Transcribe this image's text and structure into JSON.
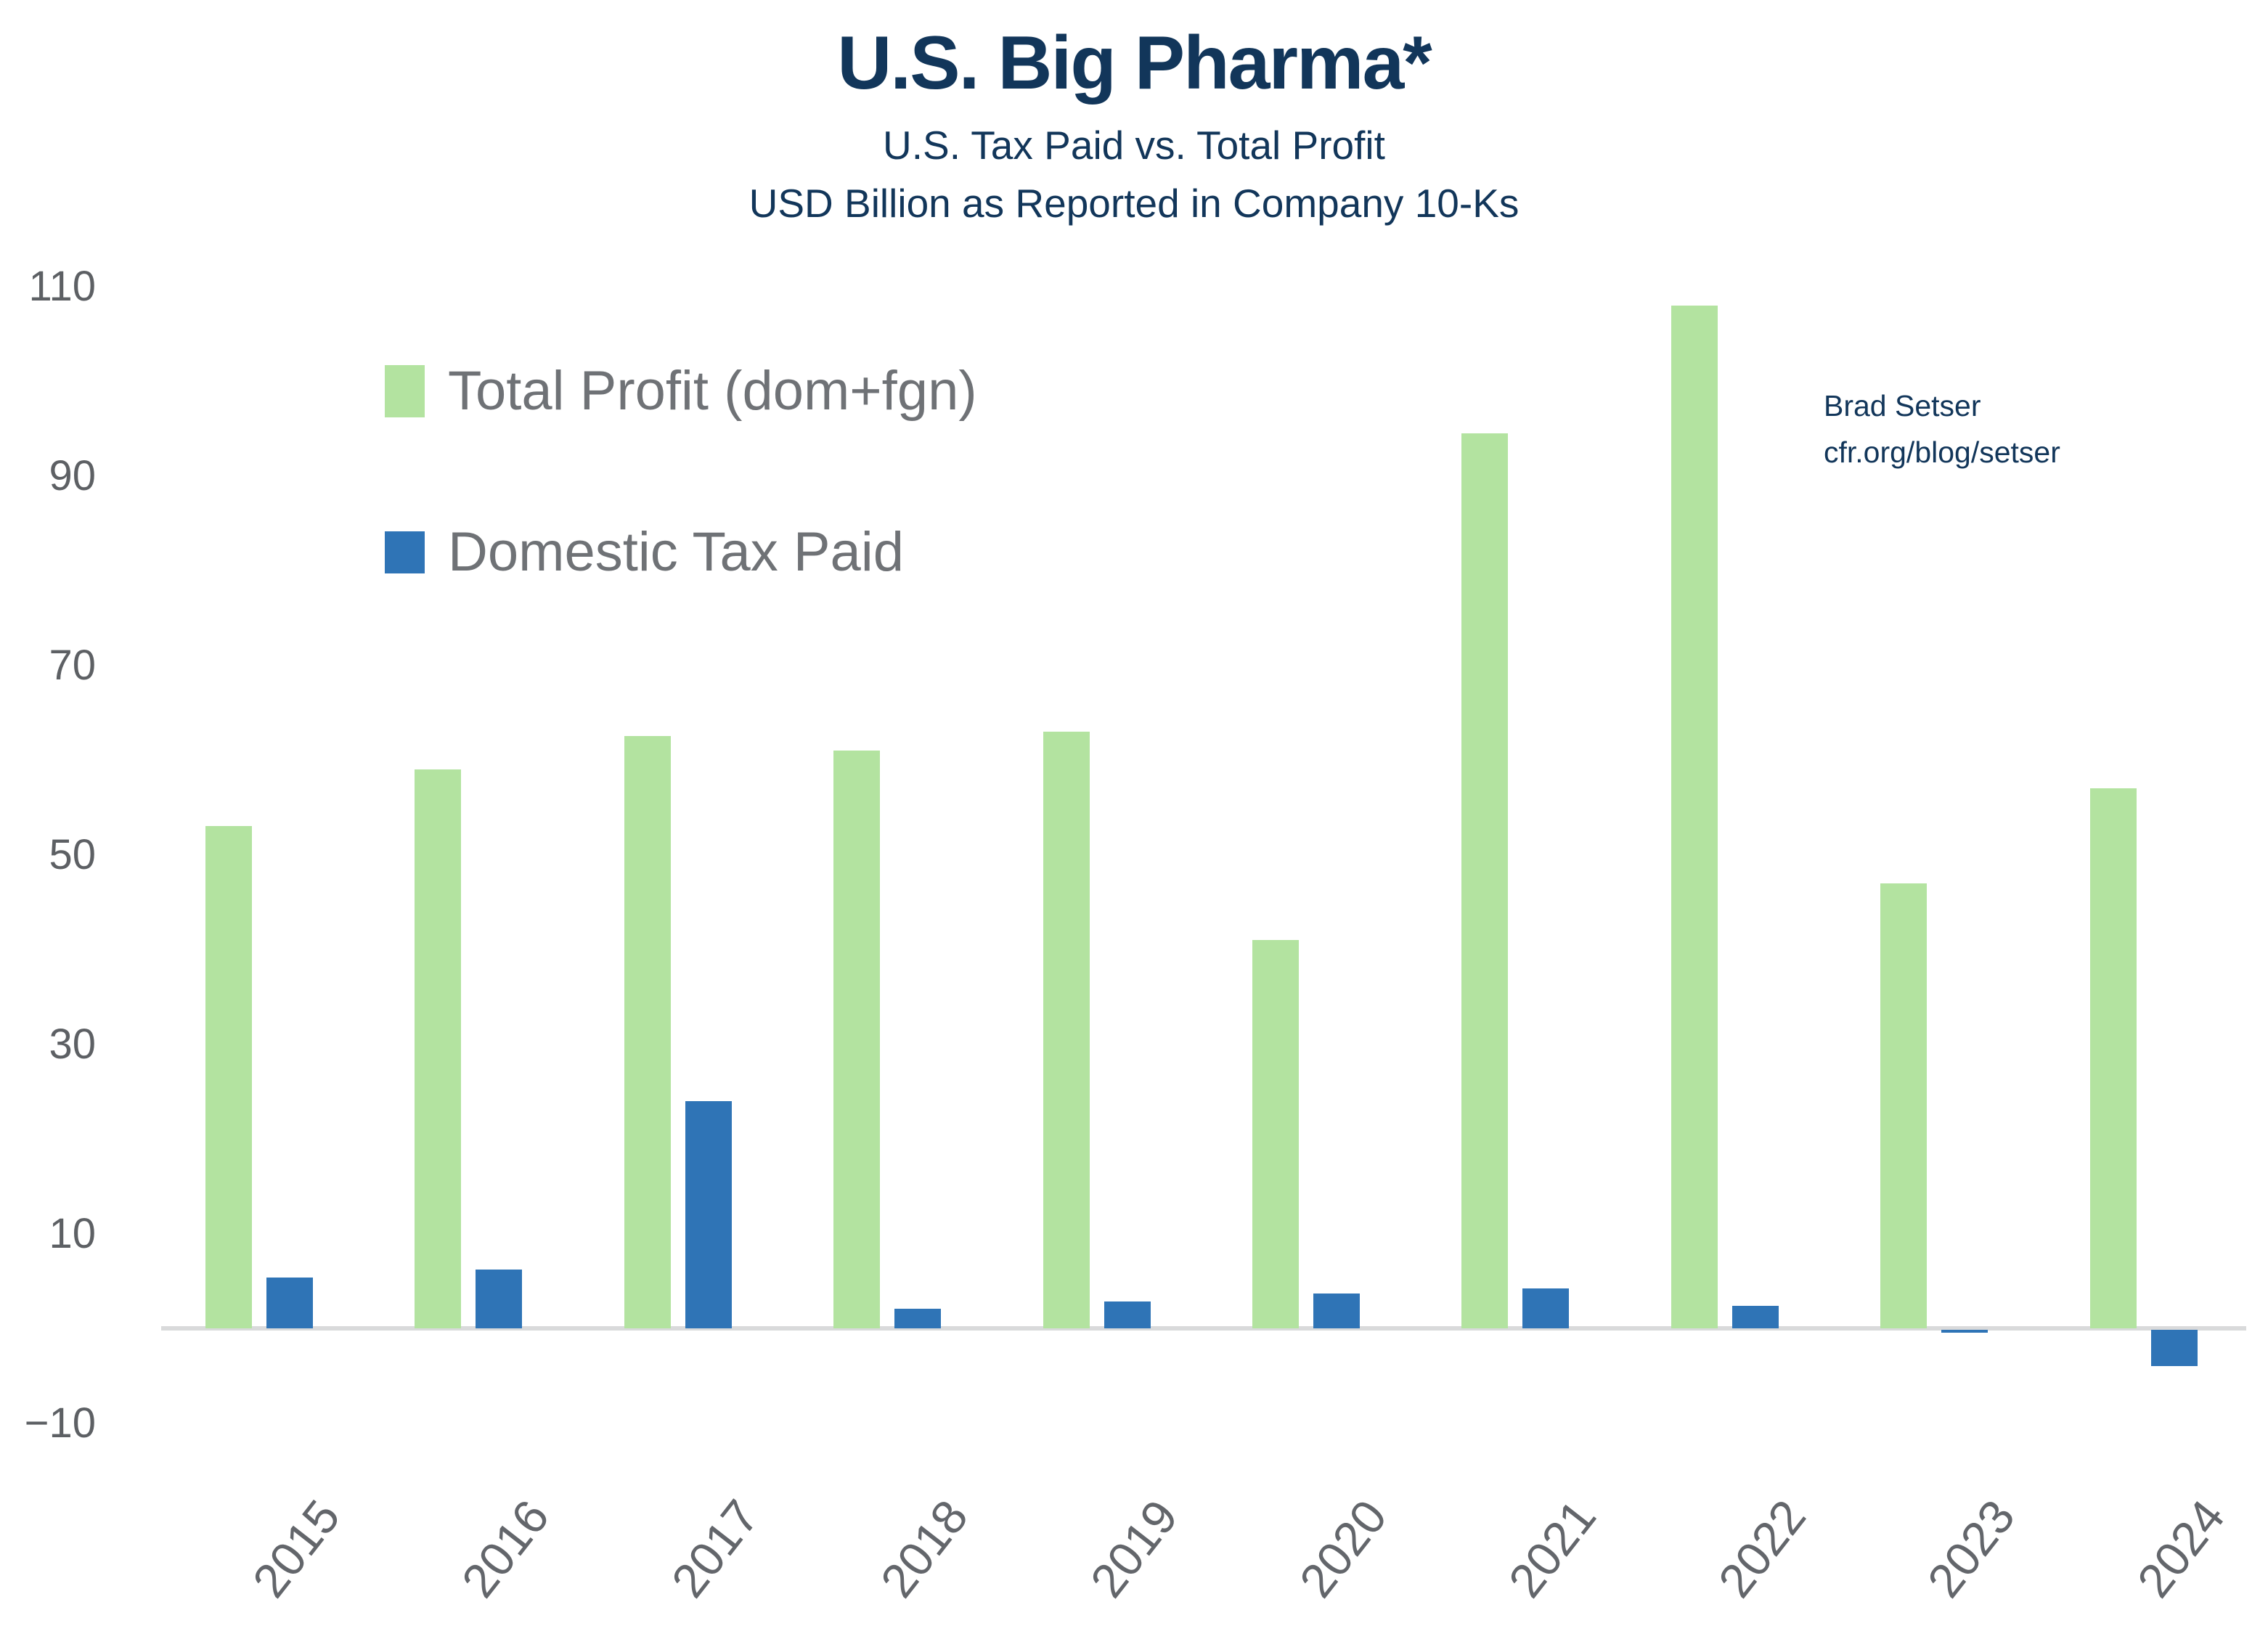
{
  "title": "U.S. Big Pharma*",
  "subtitle_line1": "U.S. Tax Paid vs. Total Profit",
  "subtitle_line2": "USD Billion as Reported in Company 10-Ks",
  "credit": {
    "author": "Brad Setser",
    "url": "cfr.org/blog/setser"
  },
  "legend": {
    "items": [
      {
        "label": "Total Profit (dom+fgn)",
        "color": "#b3e3a0"
      },
      {
        "label": "Domestic Tax Paid",
        "color": "#2f74b6"
      }
    ]
  },
  "colors": {
    "profit_green": "#b3e3a0",
    "tax_blue": "#2f74b6",
    "navy_text": "#12365a",
    "axis_gray": "#5d6064",
    "baseline_gray": "#d9dadb"
  },
  "chart_data": {
    "type": "bar",
    "title": "U.S. Big Pharma*",
    "subtitle": "U.S. Tax Paid vs. Total Profit — USD Billion as Reported in Company 10-Ks",
    "categories": [
      "2015",
      "2016",
      "2017",
      "2018",
      "2019",
      "2020",
      "2021",
      "2022",
      "2023",
      "2024"
    ],
    "series": [
      {
        "name": "Total Profit (dom+fgn)",
        "color": "#b3e3a0",
        "values": [
          53,
          59,
          62.5,
          61,
          63,
          41,
          94.5,
          108,
          47,
          57
        ]
      },
      {
        "name": "Domestic Tax Paid",
        "color": "#2f74b6",
        "values": [
          5.4,
          6.2,
          24,
          2.1,
          2.8,
          3.7,
          4.2,
          2.4,
          -0.3,
          -3.8
        ]
      }
    ],
    "xlabel": "",
    "ylabel": "",
    "ylim": [
      -15,
      112
    ],
    "yticks": [
      -10,
      10,
      30,
      50,
      70,
      90,
      110
    ],
    "grid": false,
    "legend_position": "upper-left-inside"
  }
}
